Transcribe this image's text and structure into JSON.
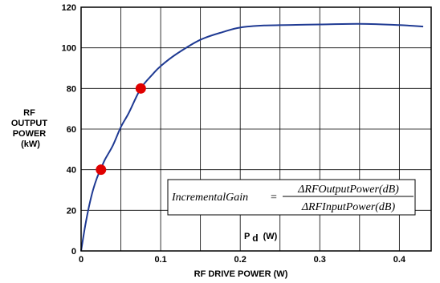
{
  "chart_data": {
    "type": "line",
    "title": "",
    "xlabel": "RF DRIVE POWER (W)",
    "xlabel_inner_main": "P",
    "xlabel_inner_sub": "d",
    "xlabel_inner_unit": "(W)",
    "ylabel_lines": [
      "RF",
      "OUTPUT",
      "POWER",
      "(kW)"
    ],
    "xlim": [
      0,
      0.44
    ],
    "ylim": [
      0,
      120
    ],
    "x_ticks": [
      0,
      0.1,
      0.2,
      0.3,
      0.4
    ],
    "x_tick_labels": [
      "0",
      "0.1",
      "0.2",
      "0.3",
      "0.4"
    ],
    "y_ticks": [
      0,
      20,
      40,
      60,
      80,
      100,
      120
    ],
    "y_tick_labels": [
      "0",
      "20",
      "40",
      "60",
      "80",
      "100",
      "120"
    ],
    "grid": true,
    "line_color": "#1f3a93",
    "marker_color": "#e00000",
    "series": [
      {
        "x": [
          0,
          0.005,
          0.01,
          0.015,
          0.02,
          0.025,
          0.03,
          0.04,
          0.05,
          0.06,
          0.075,
          0.09,
          0.1,
          0.12,
          0.15,
          0.18,
          0.2,
          0.23,
          0.27,
          0.3,
          0.35,
          0.4,
          0.43
        ],
        "y": [
          0,
          12,
          22,
          30,
          36,
          40.5,
          45,
          52,
          61,
          68,
          80,
          87,
          91,
          97,
          104,
          108,
          110,
          111,
          111.3,
          111.5,
          111.8,
          111.2,
          110.5
        ]
      }
    ],
    "markers": [
      {
        "x": 0.025,
        "y": 40
      },
      {
        "x": 0.075,
        "y": 80
      }
    ],
    "annotation": {
      "lhs": "IncrementalGain",
      "eq": "=",
      "numerator": "ΔRFOutputPower(dB)",
      "denominator": "ΔRFInputPower(dB)"
    }
  }
}
